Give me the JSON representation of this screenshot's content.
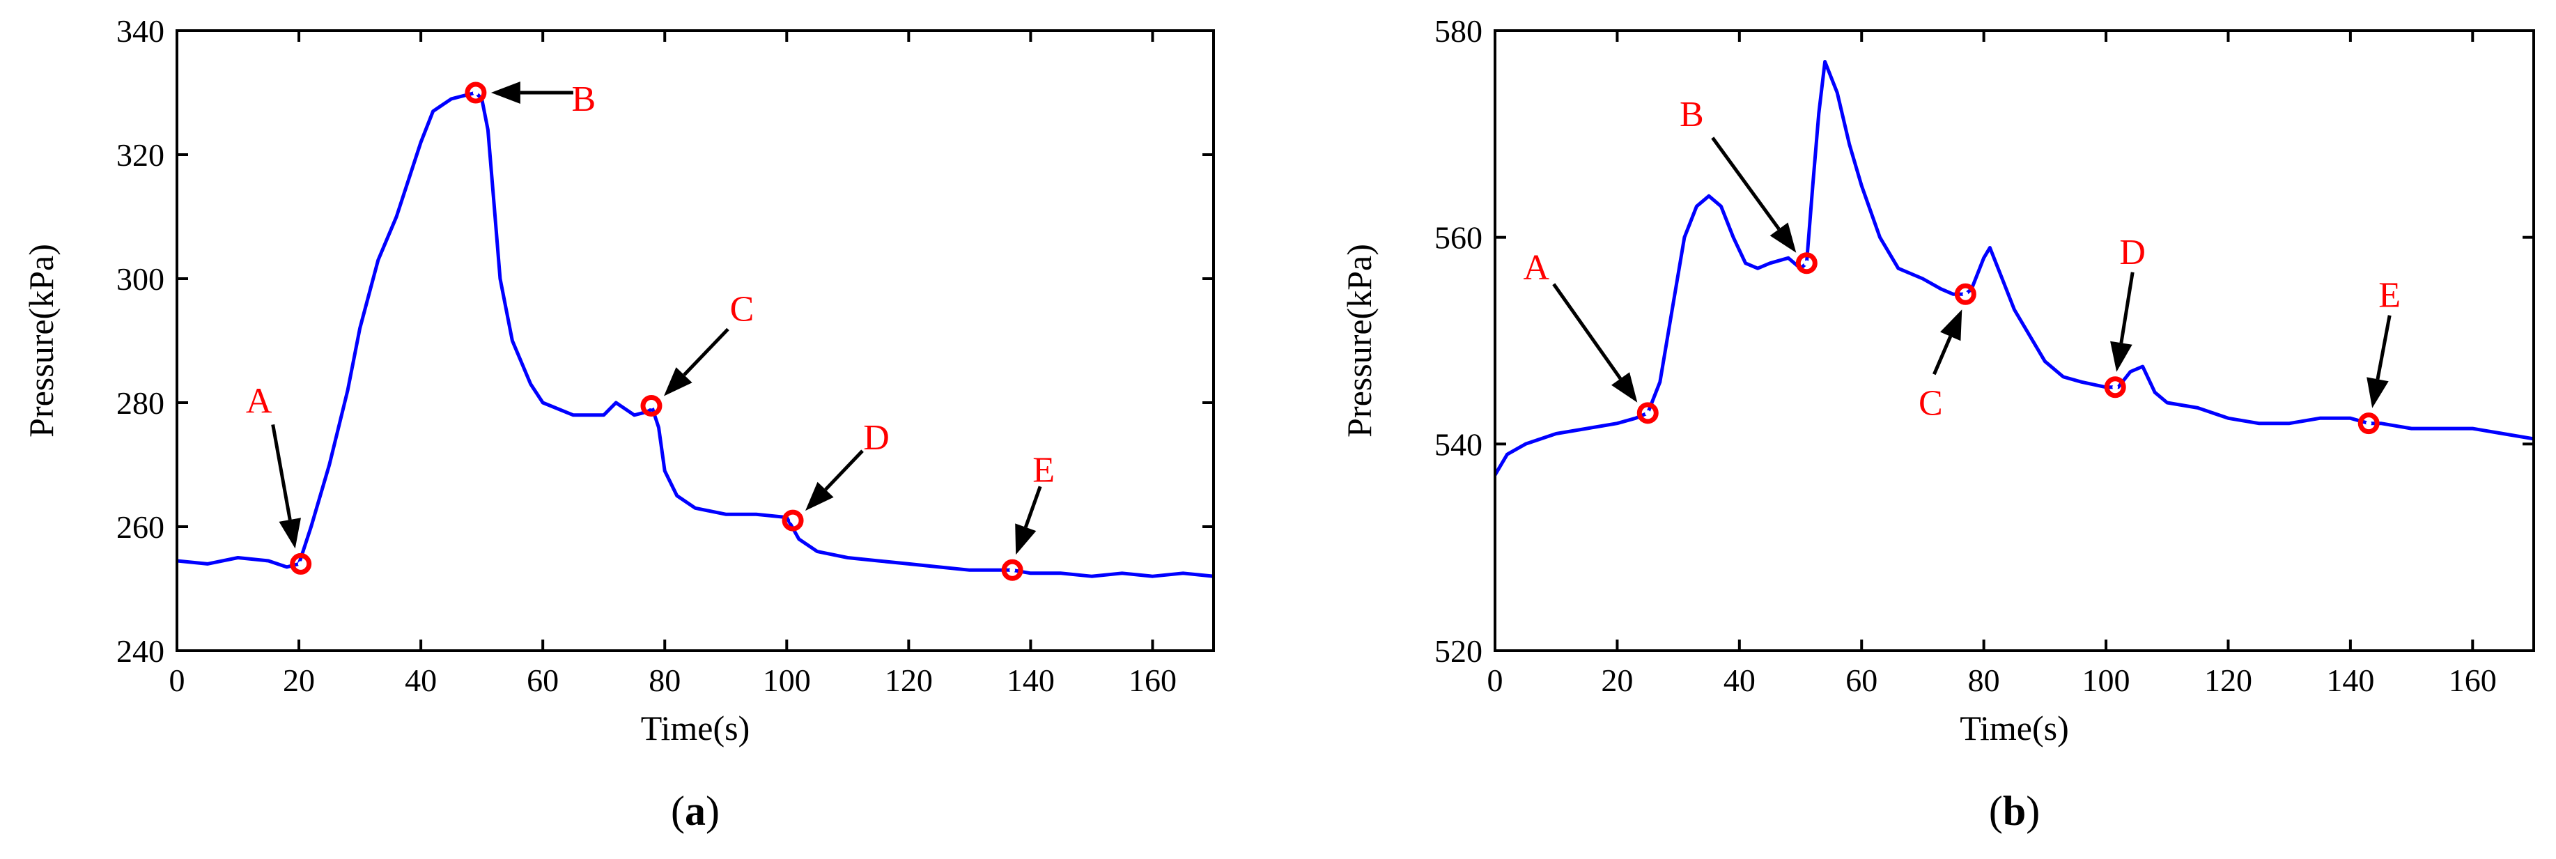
{
  "chart_data": [
    {
      "type": "line",
      "panel_label": "a",
      "xlabel": "Time(s)",
      "ylabel": "Pressure(kPa)",
      "xlim": [
        0,
        170
      ],
      "ylim": [
        240,
        340
      ],
      "xticks": [
        0,
        20,
        40,
        60,
        80,
        100,
        120,
        140,
        160
      ],
      "yticks": [
        240,
        260,
        280,
        300,
        320,
        340
      ],
      "grid": false,
      "series": [
        {
          "name": "Pressure",
          "color": "#0000ff",
          "x": [
            0,
            5,
            10,
            15,
            18,
            20,
            22,
            25,
            28,
            30,
            33,
            36,
            40,
            42,
            45,
            47,
            49,
            50,
            51,
            52,
            53,
            55,
            58,
            60,
            65,
            70,
            72,
            75,
            77,
            78,
            79,
            80,
            82,
            85,
            90,
            95,
            100,
            102,
            105,
            110,
            115,
            120,
            125,
            130,
            135,
            137,
            140,
            145,
            150,
            155,
            160,
            165,
            170
          ],
          "y": [
            254.5,
            254.0,
            255.0,
            254.5,
            253.5,
            254.0,
            260.0,
            270.0,
            282.0,
            292.0,
            303.0,
            310.0,
            322.0,
            327.0,
            329.0,
            329.5,
            330.0,
            329.0,
            324.0,
            312.0,
            300.0,
            290.0,
            283.0,
            280.0,
            278.0,
            278.0,
            280.0,
            278.0,
            278.5,
            279.0,
            276.0,
            269.0,
            265.0,
            263.0,
            262.0,
            262.0,
            261.5,
            258.0,
            256.0,
            255.0,
            254.5,
            254.0,
            253.5,
            253.0,
            253.0,
            253.0,
            252.5,
            252.5,
            252.0,
            252.5,
            252.0,
            252.5,
            252.0
          ]
        }
      ],
      "annotations": [
        {
          "label": "A",
          "x": 20.3,
          "y": 254.0
        },
        {
          "label": "B",
          "x": 49.0,
          "y": 330.0
        },
        {
          "label": "C",
          "x": 77.8,
          "y": 279.5
        },
        {
          "label": "D",
          "x": 101.0,
          "y": 261.0
        },
        {
          "label": "E",
          "x": 137.0,
          "y": 253.0
        }
      ]
    },
    {
      "type": "line",
      "panel_label": "b",
      "xlabel": "Time(s)",
      "ylabel": "Pressure(kPa)",
      "xlim": [
        0,
        170
      ],
      "ylim": [
        520,
        580
      ],
      "xticks": [
        0,
        20,
        40,
        60,
        80,
        100,
        120,
        140,
        160
      ],
      "yticks": [
        520,
        540,
        560,
        580
      ],
      "grid": false,
      "series": [
        {
          "name": "Pressure",
          "color": "#0000ff",
          "x": [
            0,
            2,
            5,
            10,
            15,
            20,
            23,
            25,
            27,
            29,
            31,
            33,
            35,
            37,
            39,
            41,
            43,
            45,
            48,
            50,
            51,
            52,
            53,
            54,
            56,
            58,
            60,
            63,
            66,
            70,
            73,
            75,
            77,
            78,
            80,
            81,
            83,
            85,
            88,
            90,
            93,
            96,
            100,
            102,
            104,
            106,
            108,
            110,
            115,
            120,
            125,
            130,
            135,
            140,
            143,
            145,
            150,
            155,
            160,
            165,
            170
          ],
          "y": [
            537.0,
            539.0,
            540.0,
            541.0,
            541.5,
            542.0,
            542.5,
            543.0,
            546.0,
            553.0,
            560.0,
            563.0,
            564.0,
            563.0,
            560.0,
            557.5,
            557.0,
            557.5,
            558.0,
            557.0,
            557.5,
            565.0,
            572.0,
            577.0,
            574.0,
            569.0,
            565.0,
            560.0,
            557.0,
            556.0,
            555.0,
            554.5,
            554.5,
            555.0,
            558.0,
            559.0,
            556.0,
            553.0,
            550.0,
            548.0,
            546.5,
            546.0,
            545.5,
            545.5,
            547.0,
            547.5,
            545.0,
            544.0,
            543.5,
            542.5,
            542.0,
            542.0,
            542.5,
            542.5,
            542.0,
            542.0,
            541.5,
            541.5,
            541.5,
            541.0,
            540.5
          ]
        }
      ],
      "annotations": [
        {
          "label": "A",
          "x": 25.0,
          "y": 543.0
        },
        {
          "label": "B",
          "x": 51.0,
          "y": 557.5
        },
        {
          "label": "C",
          "x": 77.0,
          "y": 554.5
        },
        {
          "label": "D",
          "x": 101.5,
          "y": 545.5
        },
        {
          "label": "E",
          "x": 143.0,
          "y": 542.0
        }
      ]
    }
  ]
}
